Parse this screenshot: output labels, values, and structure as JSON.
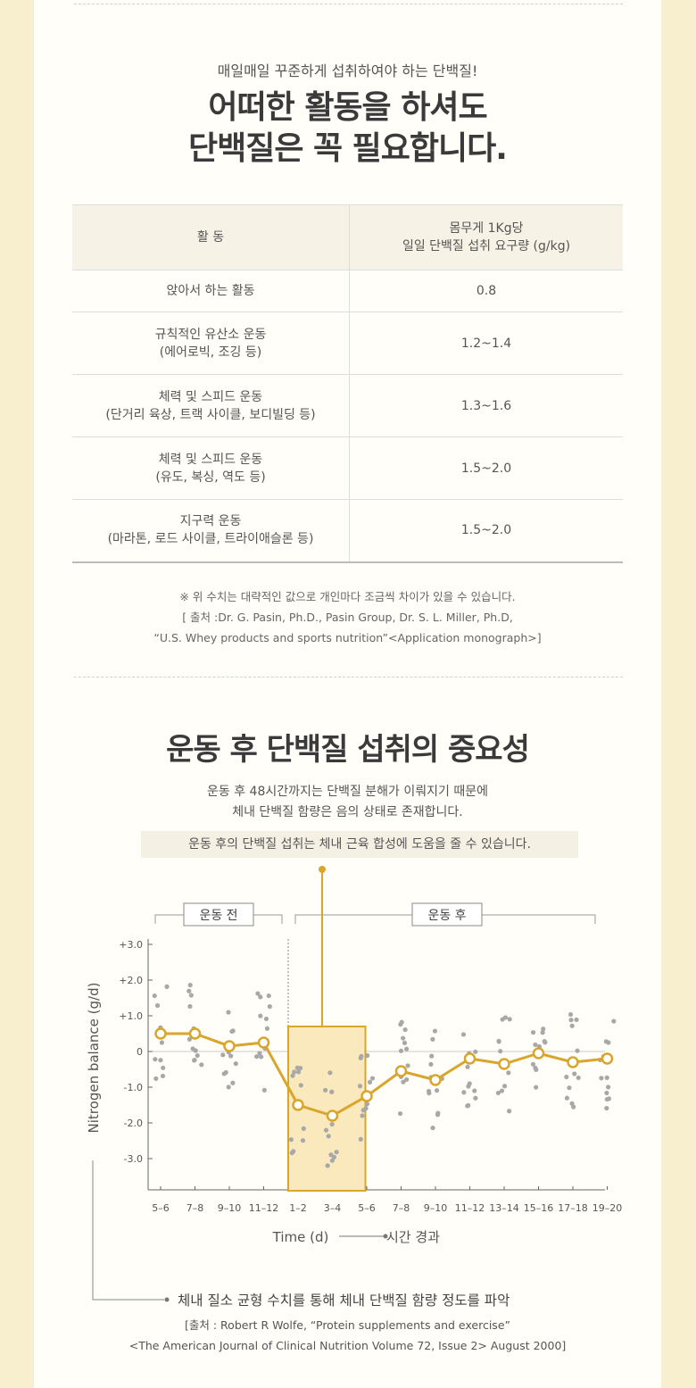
{
  "section1": {
    "subtitle": "매일매일 꾸준하게 섭취하여야 하는 단백질!",
    "title_line1": "어떠한 활동을 하셔도",
    "title_line2": "단백질은 꼭 필요합니다.",
    "table": {
      "header_activity": "활  동",
      "header_req_line1": "몸무게 1Kg당",
      "header_req_line2": "일일 단백질 섭취 요구량 (g/kg)",
      "rows": [
        {
          "line1": "앉아서 하는 활동",
          "line2": "",
          "value": "0.8"
        },
        {
          "line1": "규칙적인 유산소 운동",
          "line2": "(에어로빅, 조깅 등)",
          "value": "1.2~1.4"
        },
        {
          "line1": "체력 및 스피드 운동",
          "line2": "(단거리 육상, 트랙 사이클, 보디빌딩 등)",
          "value": "1.3~1.6"
        },
        {
          "line1": "체력 및 스피드 운동",
          "line2": "(유도, 복싱, 역도 등)",
          "value": "1.5~2.0"
        },
        {
          "line1": "지구력 운동",
          "line2": "(마라톤, 로드 사이클, 트라이애슬론 등)",
          "value": "1.5~2.0"
        }
      ]
    },
    "note_line1": "※ 위 수치는 대략적인 값으로 개인마다 조금씩 차이가 있을 수 있습니다.",
    "note_line2": "[ 출처 :Dr. G. Pasin, Ph.D., Pasin Group, Dr. S. L. Miller, Ph.D,",
    "note_line3": "“U.S. Whey products and sports nutrition”<Application monograph>]"
  },
  "section2": {
    "title": "운동 후 단백질 섭취의 중요성",
    "desc_line1": "운동 후 48시간까지는 단백질 분해가 이뤄지기 때문에",
    "desc_line2": "체내 단백질 함량은 음의 상태로 존재합니다.",
    "highlight": "운동 후의 단백질 섭취는 체내 근육 합성에 도움을 줄 수 있습니다.",
    "axis_caption": "체내 질소 균형 수치를 통해 체내 단백질 함량 정도를 파악",
    "source_line1": "[출처 : Robert R Wolfe, “Protein supplements and exercise”",
    "source_line2": "<The American Journal of Clinical Nutrition Volume 72, Issue 2> August 2000]"
  },
  "chart_data": {
    "type": "line",
    "xlabel": "Time (d)",
    "xlabel_note": "시간 경과",
    "ylabel": "Nitrogen balance (g/d)",
    "ylim": [
      -3.9,
      3.2
    ],
    "yticks": [
      3,
      2,
      1,
      0,
      -1,
      -2,
      -3
    ],
    "ytick_labels": [
      "+3.0",
      "+2.0",
      "+1.0",
      "0",
      "-1.0",
      "-2.0",
      "-3.0"
    ],
    "categories": [
      "5–6",
      "7–8",
      "9–10",
      "11–12",
      "1–2",
      "3–4",
      "5–6",
      "7–8",
      "9–10",
      "11–12",
      "13–14",
      "15–16",
      "17–18",
      "19–20"
    ],
    "series": [
      {
        "name": "",
        "values": [
          0.5,
          0.5,
          0.15,
          0.25,
          -1.5,
          -1.8,
          -1.25,
          -0.55,
          -0.8,
          -0.2,
          -0.35,
          -0.05,
          -0.3,
          -0.2
        ]
      }
    ],
    "before_label": "운동 전",
    "after_label": "운동 후",
    "colors": {
      "line": "#d9a52a",
      "box_fill": "#f9e9bd",
      "scatter": "#a8a8a8"
    }
  }
}
